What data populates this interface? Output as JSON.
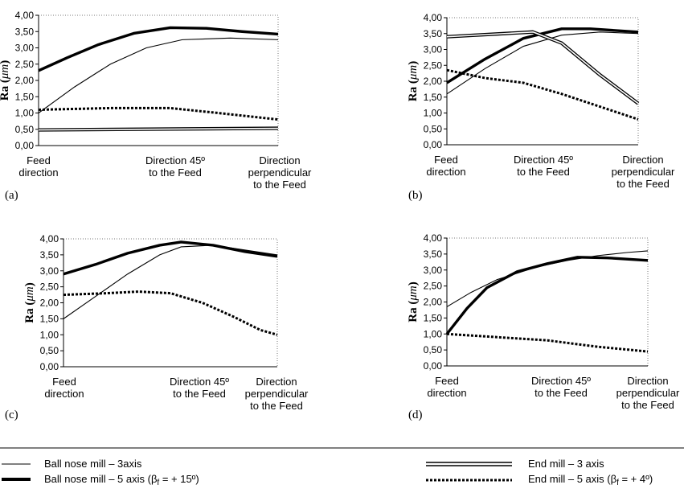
{
  "chart_data": [
    {
      "type": "line",
      "panel_label": "(a)",
      "ylabel": "Ra",
      "ylabel_unit": "μm",
      "ylim": [
        0,
        4
      ],
      "yticks": [
        "0,00",
        "0,50",
        "1,00",
        "1,50",
        "2,00",
        "2,50",
        "3,00",
        "3,50",
        "4,00"
      ],
      "categories": [
        [
          "Feed",
          "direction"
        ],
        [
          "Direction 45º",
          "to the Feed"
        ],
        [
          "Direction",
          "perpendicular",
          "to the Feed"
        ]
      ],
      "series": [
        {
          "name": "Ball nose mill – 3axis",
          "style": "thin",
          "points": [
            [
              0,
              1.0
            ],
            [
              0.15,
              1.8
            ],
            [
              0.3,
              2.5
            ],
            [
              0.45,
              3.0
            ],
            [
              0.6,
              3.25
            ],
            [
              0.8,
              3.3
            ],
            [
              1.0,
              3.25
            ]
          ]
        },
        {
          "name": "Ball nose mill – 5 axis (βf = + 15º)",
          "style": "thick",
          "points": [
            [
              0,
              2.3
            ],
            [
              0.12,
              2.7
            ],
            [
              0.25,
              3.1
            ],
            [
              0.4,
              3.45
            ],
            [
              0.55,
              3.62
            ],
            [
              0.7,
              3.6
            ],
            [
              0.85,
              3.5
            ],
            [
              1.0,
              3.42
            ]
          ]
        },
        {
          "name": "End mill – 3 axis",
          "style": "double",
          "points": [
            [
              0,
              0.48
            ],
            [
              1.0,
              0.53
            ]
          ]
        },
        {
          "name": "End  mill – 5 axis (βf = + 4º)",
          "style": "dotted",
          "points": [
            [
              0,
              1.1
            ],
            [
              0.3,
              1.15
            ],
            [
              0.55,
              1.15
            ],
            [
              0.75,
              1.0
            ],
            [
              1.0,
              0.8
            ]
          ]
        }
      ]
    },
    {
      "type": "line",
      "panel_label": "(b)",
      "ylabel": "Ra",
      "ylabel_unit": "μm",
      "ylim": [
        0,
        4
      ],
      "yticks": [
        "0,00",
        "0,50",
        "1,00",
        "1,50",
        "2,00",
        "2,50",
        "3,00",
        "3,50",
        "4,00"
      ],
      "categories": [
        [
          "Feed",
          "direction"
        ],
        [
          "Direction 45º",
          "to the Feed"
        ],
        [
          "Direction",
          "perpendicular",
          "to the Feed"
        ]
      ],
      "series": [
        {
          "name": "Ball nose mill – 3axis",
          "style": "thin",
          "points": [
            [
              0,
              1.6
            ],
            [
              0.2,
              2.4
            ],
            [
              0.4,
              3.1
            ],
            [
              0.6,
              3.45
            ],
            [
              0.8,
              3.55
            ],
            [
              1.0,
              3.5
            ]
          ]
        },
        {
          "name": "Ball nose mill – 5 axis (βf = + 15º)",
          "style": "thick",
          "points": [
            [
              0,
              1.95
            ],
            [
              0.2,
              2.7
            ],
            [
              0.4,
              3.35
            ],
            [
              0.6,
              3.65
            ],
            [
              0.75,
              3.65
            ],
            [
              1.0,
              3.55
            ]
          ]
        },
        {
          "name": "End mill – 3 axis",
          "style": "double",
          "points": [
            [
              0,
              3.4
            ],
            [
              0.3,
              3.5
            ],
            [
              0.45,
              3.55
            ],
            [
              0.6,
              3.2
            ],
            [
              0.8,
              2.2
            ],
            [
              1.0,
              1.3
            ]
          ]
        },
        {
          "name": "End  mill – 5 axis (βf = + 4º)",
          "style": "dotted",
          "points": [
            [
              0,
              2.35
            ],
            [
              0.2,
              2.1
            ],
            [
              0.4,
              1.95
            ],
            [
              0.6,
              1.6
            ],
            [
              0.8,
              1.2
            ],
            [
              1.0,
              0.8
            ]
          ]
        }
      ]
    },
    {
      "type": "line",
      "panel_label": "(c)",
      "ylabel": "Ra",
      "ylabel_unit": "μm",
      "ylim": [
        0,
        4
      ],
      "yticks": [
        "0,00",
        "0,50",
        "1,00",
        "1,50",
        "2,00",
        "2,50",
        "3,00",
        "3,50",
        "4,00"
      ],
      "categories": [
        [
          "Feed",
          "direction"
        ],
        [
          "Direction 45º",
          "to the Feed"
        ],
        [
          "Direction",
          "perpendicular",
          "to the Feed"
        ]
      ],
      "series": [
        {
          "name": "Ball nose mill – 3axis",
          "style": "thin",
          "points": [
            [
              0,
              1.5
            ],
            [
              0.15,
              2.2
            ],
            [
              0.3,
              2.9
            ],
            [
              0.45,
              3.5
            ],
            [
              0.55,
              3.75
            ],
            [
              0.7,
              3.8
            ],
            [
              0.85,
              3.65
            ],
            [
              1.0,
              3.5
            ]
          ]
        },
        {
          "name": "Ball nose mill – 5 axis (βf = + 15º)",
          "style": "thick",
          "points": [
            [
              0,
              2.9
            ],
            [
              0.15,
              3.2
            ],
            [
              0.3,
              3.55
            ],
            [
              0.45,
              3.8
            ],
            [
              0.55,
              3.9
            ],
            [
              0.7,
              3.8
            ],
            [
              0.85,
              3.6
            ],
            [
              1.0,
              3.45
            ]
          ]
        },
        {
          "name": "End  mill – 5 axis (βf = + 4º)",
          "style": "dotted",
          "points": [
            [
              0,
              2.25
            ],
            [
              0.2,
              2.3
            ],
            [
              0.35,
              2.35
            ],
            [
              0.5,
              2.3
            ],
            [
              0.65,
              2.0
            ],
            [
              0.8,
              1.55
            ],
            [
              0.92,
              1.15
            ],
            [
              1.0,
              1.0
            ]
          ]
        }
      ]
    },
    {
      "type": "line",
      "panel_label": "(d)",
      "ylabel": "Ra",
      "ylabel_unit": "μm",
      "ylim": [
        0,
        4
      ],
      "yticks": [
        "0,00",
        "0,50",
        "1,00",
        "1,50",
        "2,00",
        "2,50",
        "3,00",
        "3,50",
        "4,00"
      ],
      "categories": [
        [
          "Feed",
          "direction"
        ],
        [
          "Direction 45º",
          "to the Feed"
        ],
        [
          "Direction",
          "perpendicular",
          "to the Feed"
        ]
      ],
      "series": [
        {
          "name": "Ball nose mill – 3axis",
          "style": "thin",
          "points": [
            [
              0,
              1.85
            ],
            [
              0.12,
              2.3
            ],
            [
              0.25,
              2.7
            ],
            [
              0.45,
              3.1
            ],
            [
              0.6,
              3.3
            ],
            [
              0.75,
              3.45
            ],
            [
              0.9,
              3.55
            ],
            [
              1.0,
              3.6
            ]
          ]
        },
        {
          "name": "Ball nose mill – 5 axis (βf = + 15º)",
          "style": "thick",
          "points": [
            [
              0,
              1.0
            ],
            [
              0.1,
              1.8
            ],
            [
              0.2,
              2.45
            ],
            [
              0.35,
              2.95
            ],
            [
              0.5,
              3.2
            ],
            [
              0.65,
              3.4
            ],
            [
              0.8,
              3.38
            ],
            [
              1.0,
              3.3
            ]
          ]
        },
        {
          "name": "End  mill – 5 axis (βf = + 4º)",
          "style": "dotted",
          "points": [
            [
              0,
              1.0
            ],
            [
              0.25,
              0.9
            ],
            [
              0.5,
              0.8
            ],
            [
              0.75,
              0.6
            ],
            [
              1.0,
              0.45
            ]
          ]
        }
      ]
    }
  ],
  "legend": {
    "ball3": {
      "name": "Ball nose mill – 3axis",
      "style": "thin"
    },
    "ball5": {
      "prefix": "Ball nose mill – 5 axis (β",
      "sub": "f",
      "suffix": " = + 15º)",
      "style": "thick"
    },
    "end3": {
      "name": "End mill – 3 axis",
      "style": "double"
    },
    "end5": {
      "prefix": "End  mill – 5 axis (β",
      "sub": "f",
      "suffix": " = + 4º)",
      "style": "dotted"
    }
  }
}
